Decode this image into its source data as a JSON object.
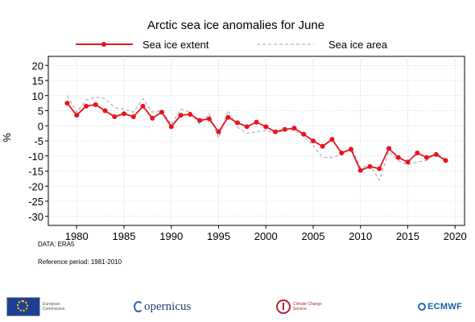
{
  "chart_data": {
    "type": "line",
    "title": "Arctic sea ice anomalies for June",
    "ylabel": "%",
    "xlim": [
      1977,
      2021
    ],
    "ylim": [
      -33,
      23
    ],
    "xticks": [
      1980,
      1985,
      1990,
      1995,
      2000,
      2005,
      2010,
      2015,
      2020
    ],
    "yticks": [
      20,
      15,
      10,
      5,
      0,
      -5,
      -10,
      -15,
      -20,
      -25,
      -30
    ],
    "grid": true,
    "legend_position": "top",
    "x": [
      1979,
      1980,
      1981,
      1982,
      1983,
      1984,
      1985,
      1986,
      1987,
      1988,
      1989,
      1990,
      1991,
      1992,
      1993,
      1994,
      1995,
      1996,
      1997,
      1998,
      1999,
      2000,
      2001,
      2002,
      2003,
      2004,
      2005,
      2006,
      2007,
      2008,
      2009,
      2010,
      2011,
      2012,
      2013,
      2014,
      2015,
      2016,
      2017,
      2018,
      2019
    ],
    "series": [
      {
        "name": "Sea ice extent",
        "color": "#e8141c",
        "style": "solid-with-markers",
        "values": [
          7.5,
          3.5,
          6.5,
          7,
          5,
          3,
          4,
          3,
          6.5,
          2.5,
          4.5,
          -0.3,
          3.5,
          3.8,
          1.8,
          2.3,
          -2,
          2.8,
          1,
          -0.3,
          1.2,
          -0.3,
          -2,
          -1.2,
          -0.8,
          -2.8,
          -5,
          -6.8,
          -4.5,
          -9,
          -7.8,
          -14.8,
          -13.5,
          -14.2,
          -7.5,
          -10.5,
          -12,
          -9,
          -10.5,
          -9.5,
          -11.5
        ]
      },
      {
        "name": "Sea ice area",
        "color": "#9aa4b8",
        "style": "dashed",
        "values": [
          10,
          4.5,
          8.5,
          9.5,
          9,
          6,
          5.5,
          4.5,
          9,
          4.5,
          5,
          0.5,
          5.5,
          4.5,
          0.5,
          4,
          -4,
          5,
          -0.5,
          -2.5,
          -2,
          -1.5,
          -2.5,
          -1.5,
          -1.5,
          -3.5,
          -6.5,
          -10.5,
          -10.5,
          -9.5,
          -7,
          -14,
          -13,
          -18,
          -8.5,
          -11.5,
          -13,
          -12,
          -11.5,
          -9,
          -11
        ]
      }
    ]
  },
  "notes": {
    "data_source": "DATA: ERA5",
    "reference_period": "Reference period: 1981-2010"
  },
  "logos": {
    "eu": "European Commission",
    "copernicus": "opernicus",
    "c3s": "Climate Change Service",
    "ecmwf": "ECMWF"
  }
}
